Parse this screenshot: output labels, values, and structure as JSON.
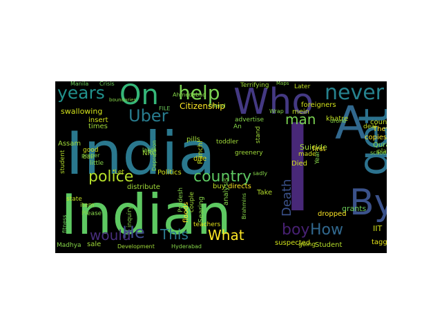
{
  "figure": {
    "words": [
      {
        "text": "India",
        "color": "#2a788e"
      },
      {
        "text": "Indian",
        "color": "#5ec962"
      },
      {
        "text": "I",
        "color": "#482878"
      },
      {
        "text": "A",
        "color": "#31688e"
      },
      {
        "text": "Who",
        "color": "#443983"
      },
      {
        "text": "get",
        "color": "#2c728e"
      },
      {
        "text": "By",
        "color": "#3b528b"
      },
      {
        "text": "On",
        "color": "#35b779"
      },
      {
        "text": "never",
        "color": "#26828e"
      },
      {
        "text": "help",
        "color": "#7ad151"
      },
      {
        "text": "years",
        "color": "#21918c"
      },
      {
        "text": "Uber",
        "color": "#287c8e"
      },
      {
        "text": "police",
        "color": "#b5de2b"
      },
      {
        "text": "country",
        "color": "#5ec962"
      },
      {
        "text": "would",
        "color": "#472d7b"
      },
      {
        "text": "He",
        "color": "#3e4989"
      },
      {
        "text": "This",
        "color": "#2a788e"
      },
      {
        "text": "What",
        "color": "#fde725"
      },
      {
        "text": "boy",
        "color": "#482173"
      },
      {
        "text": "How",
        "color": "#31688e"
      },
      {
        "text": "man",
        "color": "#7ad151"
      },
      {
        "text": "Death",
        "color": "#3b528b"
      },
      {
        "text": "Citizenship",
        "color": "#fde725"
      },
      {
        "text": "Assam",
        "color": "#a0da39"
      },
      {
        "text": "student",
        "color": "#b5de2b"
      },
      {
        "text": "Ranchi",
        "color": "#c2df23"
      },
      {
        "text": "Politics",
        "color": "#d2e21b"
      },
      {
        "text": "distribute",
        "color": "#a0da39"
      },
      {
        "text": "Suicide",
        "color": "#a0da39"
      },
      {
        "text": "Quran",
        "color": "#86d549"
      },
      {
        "text": "They",
        "color": "#fde725"
      },
      {
        "text": "copies",
        "color": "#fde725"
      },
      {
        "text": "first",
        "color": "#fde725"
      },
      {
        "text": "Died",
        "color": "#d2e21b"
      },
      {
        "text": "made",
        "color": "#d2e21b"
      },
      {
        "text": "Take",
        "color": "#b5de2b"
      },
      {
        "text": "grants",
        "color": "#6ccd5a"
      },
      {
        "text": "dropped",
        "color": "#fde725"
      },
      {
        "text": "buy",
        "color": "#c2df23"
      },
      {
        "text": "directs",
        "color": "#fde725"
      },
      {
        "text": "floods",
        "color": "#fde725"
      },
      {
        "text": "Searing",
        "color": "#86d549"
      },
      {
        "text": "teachers",
        "color": "#e5e419"
      },
      {
        "text": "pills",
        "color": "#a0da39"
      },
      {
        "text": "dire",
        "color": "#e5e419"
      },
      {
        "text": "analysis",
        "color": "#86d549"
      },
      {
        "text": "state",
        "color": "#c2df23"
      },
      {
        "text": "bail",
        "color": "#a0da39"
      },
      {
        "text": "good",
        "color": "#d2e21b"
      },
      {
        "text": "insert",
        "color": "#d2e21b"
      },
      {
        "text": "times",
        "color": "#a0da39"
      },
      {
        "text": "swallowing",
        "color": "#d2e21b"
      },
      {
        "text": "foreigners",
        "color": "#d2e21b"
      },
      {
        "text": "mein",
        "color": "#c2df23"
      },
      {
        "text": "khatre",
        "color": "#c2df23"
      },
      {
        "text": "place",
        "color": "#a0da39"
      },
      {
        "text": "count",
        "color": "#c2df23"
      },
      {
        "text": "deal",
        "color": "#c2df23"
      },
      {
        "text": "Later",
        "color": "#c2df23"
      },
      {
        "text": "suspected",
        "color": "#d2e21b"
      },
      {
        "text": "going",
        "color": "#c2df23"
      },
      {
        "text": "Student",
        "color": "#b5de2b"
      },
      {
        "text": "tagged",
        "color": "#e5e419"
      },
      {
        "text": "IIT",
        "color": "#d2e21b"
      },
      {
        "text": "sale",
        "color": "#a0da39"
      },
      {
        "text": "Madhya",
        "color": "#86d549"
      },
      {
        "text": "Development",
        "color": "#a0da39"
      },
      {
        "text": "Hyderabad",
        "color": "#86d549"
      },
      {
        "text": "Let",
        "color": "#c2df23"
      },
      {
        "text": "NRC",
        "color": "#a0da39"
      },
      {
        "text": "item",
        "color": "#a0da39"
      },
      {
        "text": "Please",
        "color": "#86d549"
      },
      {
        "text": "fitness",
        "color": "#6ccd5a"
      },
      {
        "text": "Pradesh",
        "color": "#86d549"
      },
      {
        "text": "couple",
        "color": "#a0da39"
      },
      {
        "text": "inquiry",
        "color": "#86d549"
      },
      {
        "text": "lakes",
        "color": "#86d549"
      },
      {
        "text": "toddler",
        "color": "#a0da39"
      },
      {
        "text": "greenery",
        "color": "#a0da39"
      },
      {
        "text": "advertise",
        "color": "#86d549"
      },
      {
        "text": "stand",
        "color": "#a0da39"
      },
      {
        "text": "Terrifying",
        "color": "#a0da39"
      },
      {
        "text": "Ahmedabad",
        "color": "#86d549"
      },
      {
        "text": "Manila",
        "color": "#6ccd5a"
      },
      {
        "text": "Crisis",
        "color": "#6ccd5a"
      },
      {
        "text": "little",
        "color": "#86d549"
      },
      {
        "text": "proper",
        "color": "#86d549"
      },
      {
        "text": "boundaries",
        "color": "#86d549"
      },
      {
        "text": "Depression",
        "color": "#86d549"
      },
      {
        "text": "school",
        "color": "#86d549"
      },
      {
        "text": "Maps",
        "color": "#86d549"
      },
      {
        "text": "drone",
        "color": "#86d549"
      },
      {
        "text": "Brahmins",
        "color": "#86d549"
      },
      {
        "text": "Wrap",
        "color": "#86d549"
      },
      {
        "text": "Friend",
        "color": "#86d549"
      },
      {
        "text": "FILE",
        "color": "#6ccd5a"
      },
      {
        "text": "sadly",
        "color": "#86d549"
      },
      {
        "text": "An",
        "color": "#86d549"
      },
      {
        "text": "Year",
        "color": "#86d549"
      }
    ]
  }
}
